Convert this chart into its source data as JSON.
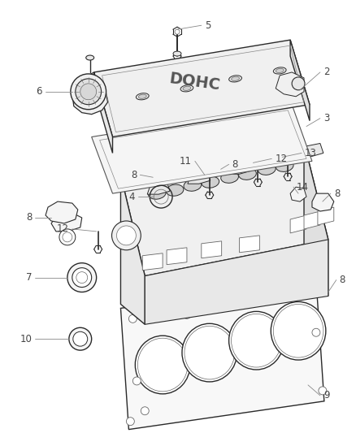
{
  "background_color": "#ffffff",
  "line_color": "#2a2a2a",
  "light_line": "#666666",
  "label_color": "#444444",
  "leader_color": "#888888",
  "label_fontsize": 8.5,
  "figsize": [
    4.38,
    5.33
  ],
  "dpi": 100
}
